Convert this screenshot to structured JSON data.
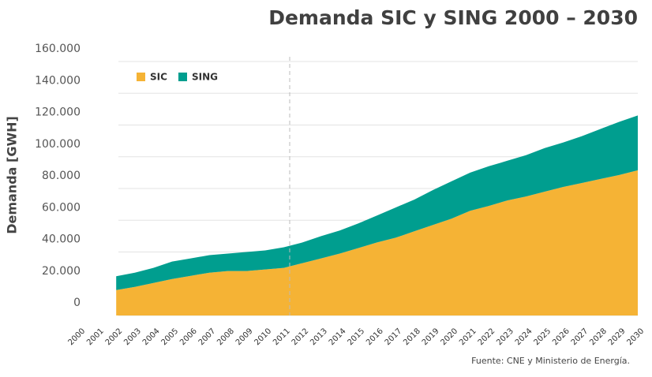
{
  "chart_data": {
    "type": "stacked_area",
    "title": "Demanda SIC y SING 2000 – 2030",
    "y_label": "Demanda [GWH]",
    "source": "Fuente: CNE y Ministerio de Energía.",
    "x": [
      "2000",
      "2001",
      "2002",
      "2003",
      "2004",
      "2005",
      "2006",
      "2007",
      "2008",
      "2009",
      "2010",
      "2011",
      "2012",
      "2013",
      "2014",
      "2015",
      "2016",
      "2017",
      "2018",
      "2019",
      "2020",
      "2021",
      "2022",
      "2023",
      "2024",
      "2025",
      "2026",
      "2027",
      "2028",
      "2029",
      "2030"
    ],
    "series": [
      {
        "name": "SIC",
        "color": "#f5b335",
        "values": [
          null,
          null,
          16000,
          18000,
          20500,
          23000,
          25000,
          27000,
          28000,
          28000,
          29000,
          30000,
          33000,
          36000,
          39000,
          42500,
          46000,
          49000,
          53000,
          57000,
          61000,
          66000,
          69000,
          72500,
          75000,
          78000,
          81000,
          83500,
          86000,
          88500,
          91500
        ]
      },
      {
        "name": "SING",
        "color": "#009e8f",
        "values": [
          null,
          null,
          8700,
          9000,
          9500,
          11000,
          11000,
          11000,
          11000,
          12000,
          12000,
          13000,
          13000,
          14000,
          14500,
          15500,
          17000,
          19000,
          20000,
          22000,
          23500,
          24000,
          25000,
          25000,
          26000,
          27500,
          28000,
          29500,
          31500,
          33500,
          34500
        ]
      }
    ],
    "ylim": [
      0,
      160000
    ],
    "yticks": [
      {
        "value": 0,
        "label": "0"
      },
      {
        "value": 20000,
        "label": "20.000"
      },
      {
        "value": 40000,
        "label": "40.000"
      },
      {
        "value": 60000,
        "label": "60.000"
      },
      {
        "value": 80000,
        "label": "80.000"
      },
      {
        "value": 100000,
        "label": "100.000"
      },
      {
        "value": 120000,
        "label": "120.000"
      },
      {
        "value": 140000,
        "label": "140.000"
      },
      {
        "value": 160000,
        "label": "160.000"
      }
    ],
    "grid": true,
    "legend": "upper left"
  }
}
